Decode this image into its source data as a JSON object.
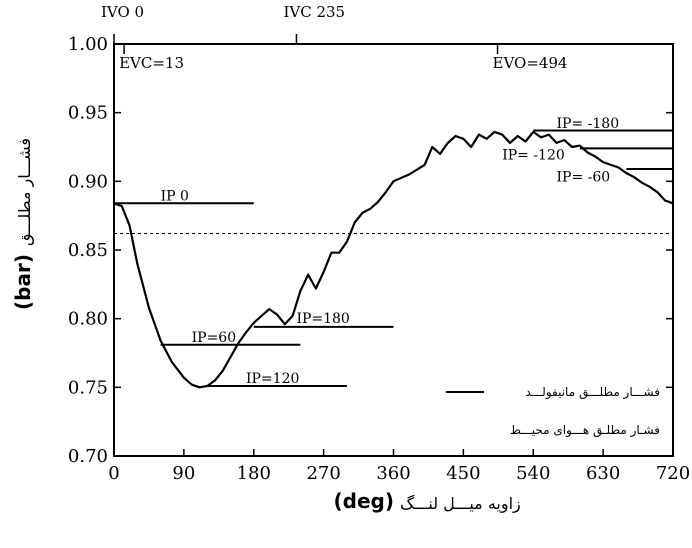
{
  "chart_data": {
    "type": "line",
    "xlabel_fa": "زاویه میـــل لنـــگ",
    "xlabel_unit": "(deg)",
    "ylabel_fa": "فشـــار مطلـــق",
    "ylabel_unit": "(bar)",
    "xlim": [
      0,
      720
    ],
    "ylim": [
      0.7,
      1.0
    ],
    "x_ticks": [
      0,
      90,
      180,
      270,
      360,
      450,
      540,
      630,
      720
    ],
    "y_ticks": [
      "0.70",
      "0.75",
      "0.80",
      "0.85",
      "0.90",
      "0.95",
      "1.00"
    ],
    "series": [
      {
        "name": "فشـــار مطلـــق مانیفولـــد",
        "style": "solid",
        "x": [
          0,
          10,
          20,
          30,
          45,
          60,
          75,
          90,
          100,
          110,
          120,
          130,
          140,
          150,
          160,
          170,
          180,
          190,
          200,
          210,
          220,
          230,
          240,
          250,
          260,
          270,
          280,
          290,
          300,
          310,
          320,
          330,
          340,
          350,
          360,
          380,
          400,
          410,
          420,
          430,
          440,
          450,
          460,
          470,
          480,
          490,
          500,
          510,
          520,
          530,
          540,
          550,
          560,
          570,
          580,
          590,
          600,
          610,
          620,
          630,
          640,
          650,
          660,
          670,
          680,
          690,
          700,
          710,
          720
        ],
        "y": [
          0.884,
          0.882,
          0.868,
          0.84,
          0.808,
          0.784,
          0.768,
          0.757,
          0.752,
          0.75,
          0.751,
          0.755,
          0.762,
          0.772,
          0.782,
          0.79,
          0.797,
          0.802,
          0.807,
          0.803,
          0.796,
          0.802,
          0.82,
          0.832,
          0.822,
          0.834,
          0.848,
          0.848,
          0.856,
          0.87,
          0.877,
          0.88,
          0.885,
          0.892,
          0.9,
          0.905,
          0.912,
          0.925,
          0.92,
          0.928,
          0.933,
          0.931,
          0.925,
          0.934,
          0.931,
          0.936,
          0.934,
          0.928,
          0.933,
          0.929,
          0.936,
          0.932,
          0.934,
          0.928,
          0.93,
          0.925,
          0.926,
          0.921,
          0.918,
          0.914,
          0.912,
          0.91,
          0.906,
          0.903,
          0.899,
          0.896,
          0.892,
          0.886,
          0.884
        ]
      },
      {
        "name": "فشـار مطلـق هـــوای محیـــط",
        "style": "dashed",
        "x": [
          0,
          720
        ],
        "y": [
          0.862,
          0.862
        ]
      }
    ],
    "top_markers": [
      {
        "label": "IVO  0",
        "x": 0
      },
      {
        "label": "IVC  235",
        "x": 235
      }
    ],
    "inner_markers": [
      {
        "label": "EVC=13",
        "x": 13
      },
      {
        "label": "EVO=494",
        "x": 494
      }
    ],
    "injection_markers": [
      {
        "label": "IP  0",
        "x1": 0,
        "x2": 180,
        "y": 0.884,
        "label_x": 60,
        "label_y": 0.886
      },
      {
        "label": "IP=60",
        "x1": 60,
        "x2": 240,
        "y": 0.781,
        "label_x": 100,
        "label_y": 0.783
      },
      {
        "label": "IP=120",
        "x1": 120,
        "x2": 300,
        "y": 0.751,
        "label_x": 170,
        "label_y": 0.753
      },
      {
        "label": "IP=180",
        "x1": 180,
        "x2": 360,
        "y": 0.794,
        "label_x": 235,
        "label_y": 0.797
      },
      {
        "label": "IP= -180",
        "x1": 540,
        "x2": 720,
        "y": 0.937,
        "label_x": 570,
        "label_y": 0.939
      },
      {
        "label": "IP= -120",
        "x1": 600,
        "x2": 720,
        "y": 0.924,
        "label_x": 500,
        "label_y": 0.916
      },
      {
        "label": "IP= -60",
        "x1": 660,
        "x2": 720,
        "y": 0.909,
        "label_x": 570,
        "label_y": 0.9
      }
    ]
  }
}
